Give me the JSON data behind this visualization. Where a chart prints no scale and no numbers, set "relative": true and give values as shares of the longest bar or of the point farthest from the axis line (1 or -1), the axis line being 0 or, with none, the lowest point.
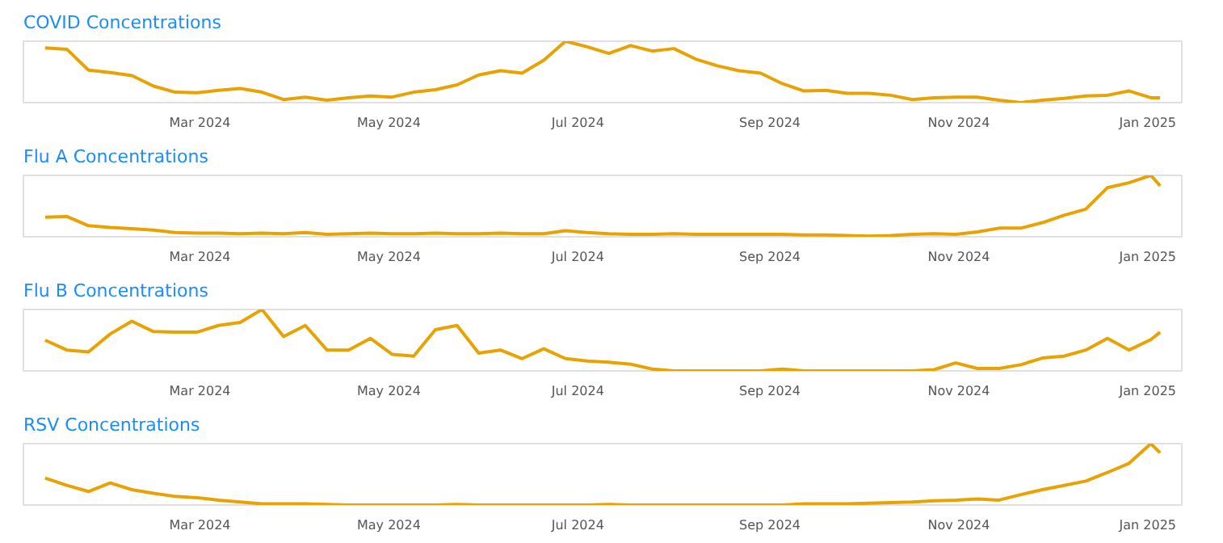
{
  "chart_data": [
    {
      "type": "line",
      "title": "COVID Concentrations",
      "relative": true,
      "color": "#e8a202",
      "grid": false,
      "xlim": [
        "2024-01-04",
        "2025-01-12"
      ],
      "xticks": [
        {
          "value": "2024-03-01",
          "label": "Mar 2024"
        },
        {
          "value": "2024-05-01",
          "label": "May 2024"
        },
        {
          "value": "2024-07-01",
          "label": "Jul 2024"
        },
        {
          "value": "2024-09-01",
          "label": "Sep 2024"
        },
        {
          "value": "2024-11-01",
          "label": "Nov 2024"
        },
        {
          "value": "2025-01-01",
          "label": "Jan 2025"
        }
      ],
      "x": [
        "2024-01-11",
        "2024-01-18",
        "2024-01-25",
        "2024-02-01",
        "2024-02-08",
        "2024-02-15",
        "2024-02-22",
        "2024-02-29",
        "2024-03-07",
        "2024-03-14",
        "2024-03-21",
        "2024-03-28",
        "2024-04-04",
        "2024-04-11",
        "2024-04-18",
        "2024-04-25",
        "2024-05-02",
        "2024-05-09",
        "2024-05-16",
        "2024-05-23",
        "2024-05-30",
        "2024-06-06",
        "2024-06-13",
        "2024-06-20",
        "2024-06-27",
        "2024-07-04",
        "2024-07-11",
        "2024-07-18",
        "2024-07-25",
        "2024-08-01",
        "2024-08-08",
        "2024-08-15",
        "2024-08-22",
        "2024-08-29",
        "2024-09-05",
        "2024-09-12",
        "2024-09-19",
        "2024-09-26",
        "2024-10-03",
        "2024-10-10",
        "2024-10-17",
        "2024-10-24",
        "2024-10-31",
        "2024-11-07",
        "2024-11-14",
        "2024-11-21",
        "2024-11-28",
        "2024-12-05",
        "2024-12-12",
        "2024-12-19",
        "2024-12-26",
        "2025-01-02",
        "2025-01-05"
      ],
      "values": [
        0.89,
        0.87,
        0.53,
        0.49,
        0.44,
        0.27,
        0.17,
        0.16,
        0.2,
        0.23,
        0.17,
        0.05,
        0.09,
        0.04,
        0.08,
        0.11,
        0.09,
        0.17,
        0.21,
        0.29,
        0.45,
        0.52,
        0.48,
        0.69,
        1.0,
        0.91,
        0.8,
        0.93,
        0.84,
        0.88,
        0.71,
        0.6,
        0.52,
        0.48,
        0.31,
        0.19,
        0.2,
        0.15,
        0.15,
        0.12,
        0.05,
        0.08,
        0.09,
        0.09,
        0.04,
        0.0,
        0.04,
        0.07,
        0.11,
        0.12,
        0.19,
        0.08,
        0.08
      ]
    },
    {
      "type": "line",
      "title": "Flu A Concentrations",
      "relative": true,
      "color": "#e8a202",
      "grid": false,
      "xlim": [
        "2024-01-04",
        "2025-01-12"
      ],
      "xticks": [
        {
          "value": "2024-03-01",
          "label": "Mar 2024"
        },
        {
          "value": "2024-05-01",
          "label": "May 2024"
        },
        {
          "value": "2024-07-01",
          "label": "Jul 2024"
        },
        {
          "value": "2024-09-01",
          "label": "Sep 2024"
        },
        {
          "value": "2024-11-01",
          "label": "Nov 2024"
        },
        {
          "value": "2025-01-01",
          "label": "Jan 2025"
        }
      ],
      "x": [
        "2024-01-11",
        "2024-01-18",
        "2024-01-25",
        "2024-02-01",
        "2024-02-08",
        "2024-02-15",
        "2024-02-22",
        "2024-02-29",
        "2024-03-07",
        "2024-03-14",
        "2024-03-21",
        "2024-03-28",
        "2024-04-04",
        "2024-04-11",
        "2024-04-18",
        "2024-04-25",
        "2024-05-02",
        "2024-05-09",
        "2024-05-16",
        "2024-05-23",
        "2024-05-30",
        "2024-06-06",
        "2024-06-13",
        "2024-06-20",
        "2024-06-27",
        "2024-07-04",
        "2024-07-11",
        "2024-07-18",
        "2024-07-25",
        "2024-08-01",
        "2024-08-08",
        "2024-08-15",
        "2024-08-22",
        "2024-08-29",
        "2024-09-05",
        "2024-09-12",
        "2024-09-19",
        "2024-09-26",
        "2024-10-03",
        "2024-10-10",
        "2024-10-17",
        "2024-10-24",
        "2024-10-31",
        "2024-11-07",
        "2024-11-14",
        "2024-11-21",
        "2024-11-28",
        "2024-12-05",
        "2024-12-12",
        "2024-12-19",
        "2024-12-26",
        "2025-01-02",
        "2025-01-05"
      ],
      "values": [
        0.32,
        0.33,
        0.18,
        0.15,
        0.13,
        0.11,
        0.07,
        0.06,
        0.06,
        0.05,
        0.06,
        0.05,
        0.07,
        0.04,
        0.05,
        0.06,
        0.05,
        0.05,
        0.06,
        0.05,
        0.05,
        0.06,
        0.05,
        0.05,
        0.1,
        0.07,
        0.05,
        0.04,
        0.04,
        0.05,
        0.04,
        0.04,
        0.04,
        0.04,
        0.04,
        0.03,
        0.03,
        0.02,
        0.01,
        0.02,
        0.04,
        0.05,
        0.04,
        0.08,
        0.14,
        0.14,
        0.23,
        0.35,
        0.45,
        0.8,
        0.88,
        1.0,
        0.83
      ]
    },
    {
      "type": "line",
      "title": "Flu B Concentrations",
      "relative": true,
      "color": "#e8a202",
      "grid": false,
      "xlim": [
        "2024-01-04",
        "2025-01-12"
      ],
      "xticks": [
        {
          "value": "2024-03-01",
          "label": "Mar 2024"
        },
        {
          "value": "2024-05-01",
          "label": "May 2024"
        },
        {
          "value": "2024-07-01",
          "label": "Jul 2024"
        },
        {
          "value": "2024-09-01",
          "label": "Sep 2024"
        },
        {
          "value": "2024-11-01",
          "label": "Nov 2024"
        },
        {
          "value": "2025-01-01",
          "label": "Jan 2025"
        }
      ],
      "x": [
        "2024-01-11",
        "2024-01-18",
        "2024-01-25",
        "2024-02-01",
        "2024-02-08",
        "2024-02-15",
        "2024-02-22",
        "2024-02-29",
        "2024-03-07",
        "2024-03-14",
        "2024-03-21",
        "2024-03-28",
        "2024-04-04",
        "2024-04-11",
        "2024-04-18",
        "2024-04-25",
        "2024-05-02",
        "2024-05-09",
        "2024-05-16",
        "2024-05-23",
        "2024-05-30",
        "2024-06-06",
        "2024-06-13",
        "2024-06-20",
        "2024-06-27",
        "2024-07-04",
        "2024-07-11",
        "2024-07-18",
        "2024-07-25",
        "2024-08-01",
        "2024-08-08",
        "2024-08-15",
        "2024-08-22",
        "2024-08-29",
        "2024-09-05",
        "2024-09-12",
        "2024-09-19",
        "2024-09-26",
        "2024-10-03",
        "2024-10-10",
        "2024-10-17",
        "2024-10-24",
        "2024-10-31",
        "2024-11-07",
        "2024-11-14",
        "2024-11-21",
        "2024-11-28",
        "2024-12-05",
        "2024-12-12",
        "2024-12-19",
        "2024-12-26",
        "2025-01-02",
        "2025-01-05"
      ],
      "values": [
        0.5,
        0.34,
        0.31,
        0.6,
        0.81,
        0.64,
        0.63,
        0.63,
        0.74,
        0.79,
        1.0,
        0.56,
        0.74,
        0.34,
        0.34,
        0.53,
        0.27,
        0.24,
        0.67,
        0.74,
        0.29,
        0.34,
        0.2,
        0.36,
        0.2,
        0.16,
        0.14,
        0.11,
        0.03,
        0.0,
        0.0,
        0.0,
        0.0,
        0.0,
        0.03,
        0.0,
        0.0,
        0.0,
        0.0,
        0.0,
        0.0,
        0.02,
        0.13,
        0.04,
        0.04,
        0.1,
        0.21,
        0.24,
        0.34,
        0.53,
        0.34,
        0.51,
        0.63
      ]
    },
    {
      "type": "line",
      "title": "RSV Concentrations",
      "relative": true,
      "color": "#e8a202",
      "grid": false,
      "xlim": [
        "2024-01-04",
        "2025-01-12"
      ],
      "xticks": [
        {
          "value": "2024-03-01",
          "label": "Mar 2024"
        },
        {
          "value": "2024-05-01",
          "label": "May 2024"
        },
        {
          "value": "2024-07-01",
          "label": "Jul 2024"
        },
        {
          "value": "2024-09-01",
          "label": "Sep 2024"
        },
        {
          "value": "2024-11-01",
          "label": "Nov 2024"
        },
        {
          "value": "2025-01-01",
          "label": "Jan 2025"
        }
      ],
      "x": [
        "2024-01-11",
        "2024-01-18",
        "2024-01-25",
        "2024-02-01",
        "2024-02-08",
        "2024-02-15",
        "2024-02-22",
        "2024-02-29",
        "2024-03-07",
        "2024-03-14",
        "2024-03-21",
        "2024-03-28",
        "2024-04-04",
        "2024-04-11",
        "2024-04-18",
        "2024-04-25",
        "2024-05-02",
        "2024-05-09",
        "2024-05-16",
        "2024-05-23",
        "2024-05-30",
        "2024-06-06",
        "2024-06-13",
        "2024-06-20",
        "2024-06-27",
        "2024-07-04",
        "2024-07-11",
        "2024-07-18",
        "2024-07-25",
        "2024-08-01",
        "2024-08-08",
        "2024-08-15",
        "2024-08-22",
        "2024-08-29",
        "2024-09-05",
        "2024-09-12",
        "2024-09-19",
        "2024-09-26",
        "2024-10-03",
        "2024-10-10",
        "2024-10-17",
        "2024-10-24",
        "2024-10-31",
        "2024-11-07",
        "2024-11-14",
        "2024-11-21",
        "2024-11-28",
        "2024-12-05",
        "2024-12-12",
        "2024-12-19",
        "2024-12-26",
        "2025-01-02",
        "2025-01-05"
      ],
      "values": [
        0.44,
        0.32,
        0.22,
        0.36,
        0.25,
        0.19,
        0.14,
        0.12,
        0.08,
        0.05,
        0.02,
        0.02,
        0.02,
        0.01,
        0.0,
        0.0,
        0.0,
        0.0,
        0.0,
        0.01,
        0.0,
        0.0,
        0.0,
        0.0,
        0.0,
        0.0,
        0.01,
        0.0,
        0.0,
        0.0,
        0.0,
        0.0,
        0.0,
        0.0,
        0.0,
        0.02,
        0.02,
        0.02,
        0.03,
        0.04,
        0.05,
        0.07,
        0.08,
        0.1,
        0.08,
        0.17,
        0.25,
        0.32,
        0.39,
        0.53,
        0.68,
        1.0,
        0.85
      ]
    }
  ]
}
